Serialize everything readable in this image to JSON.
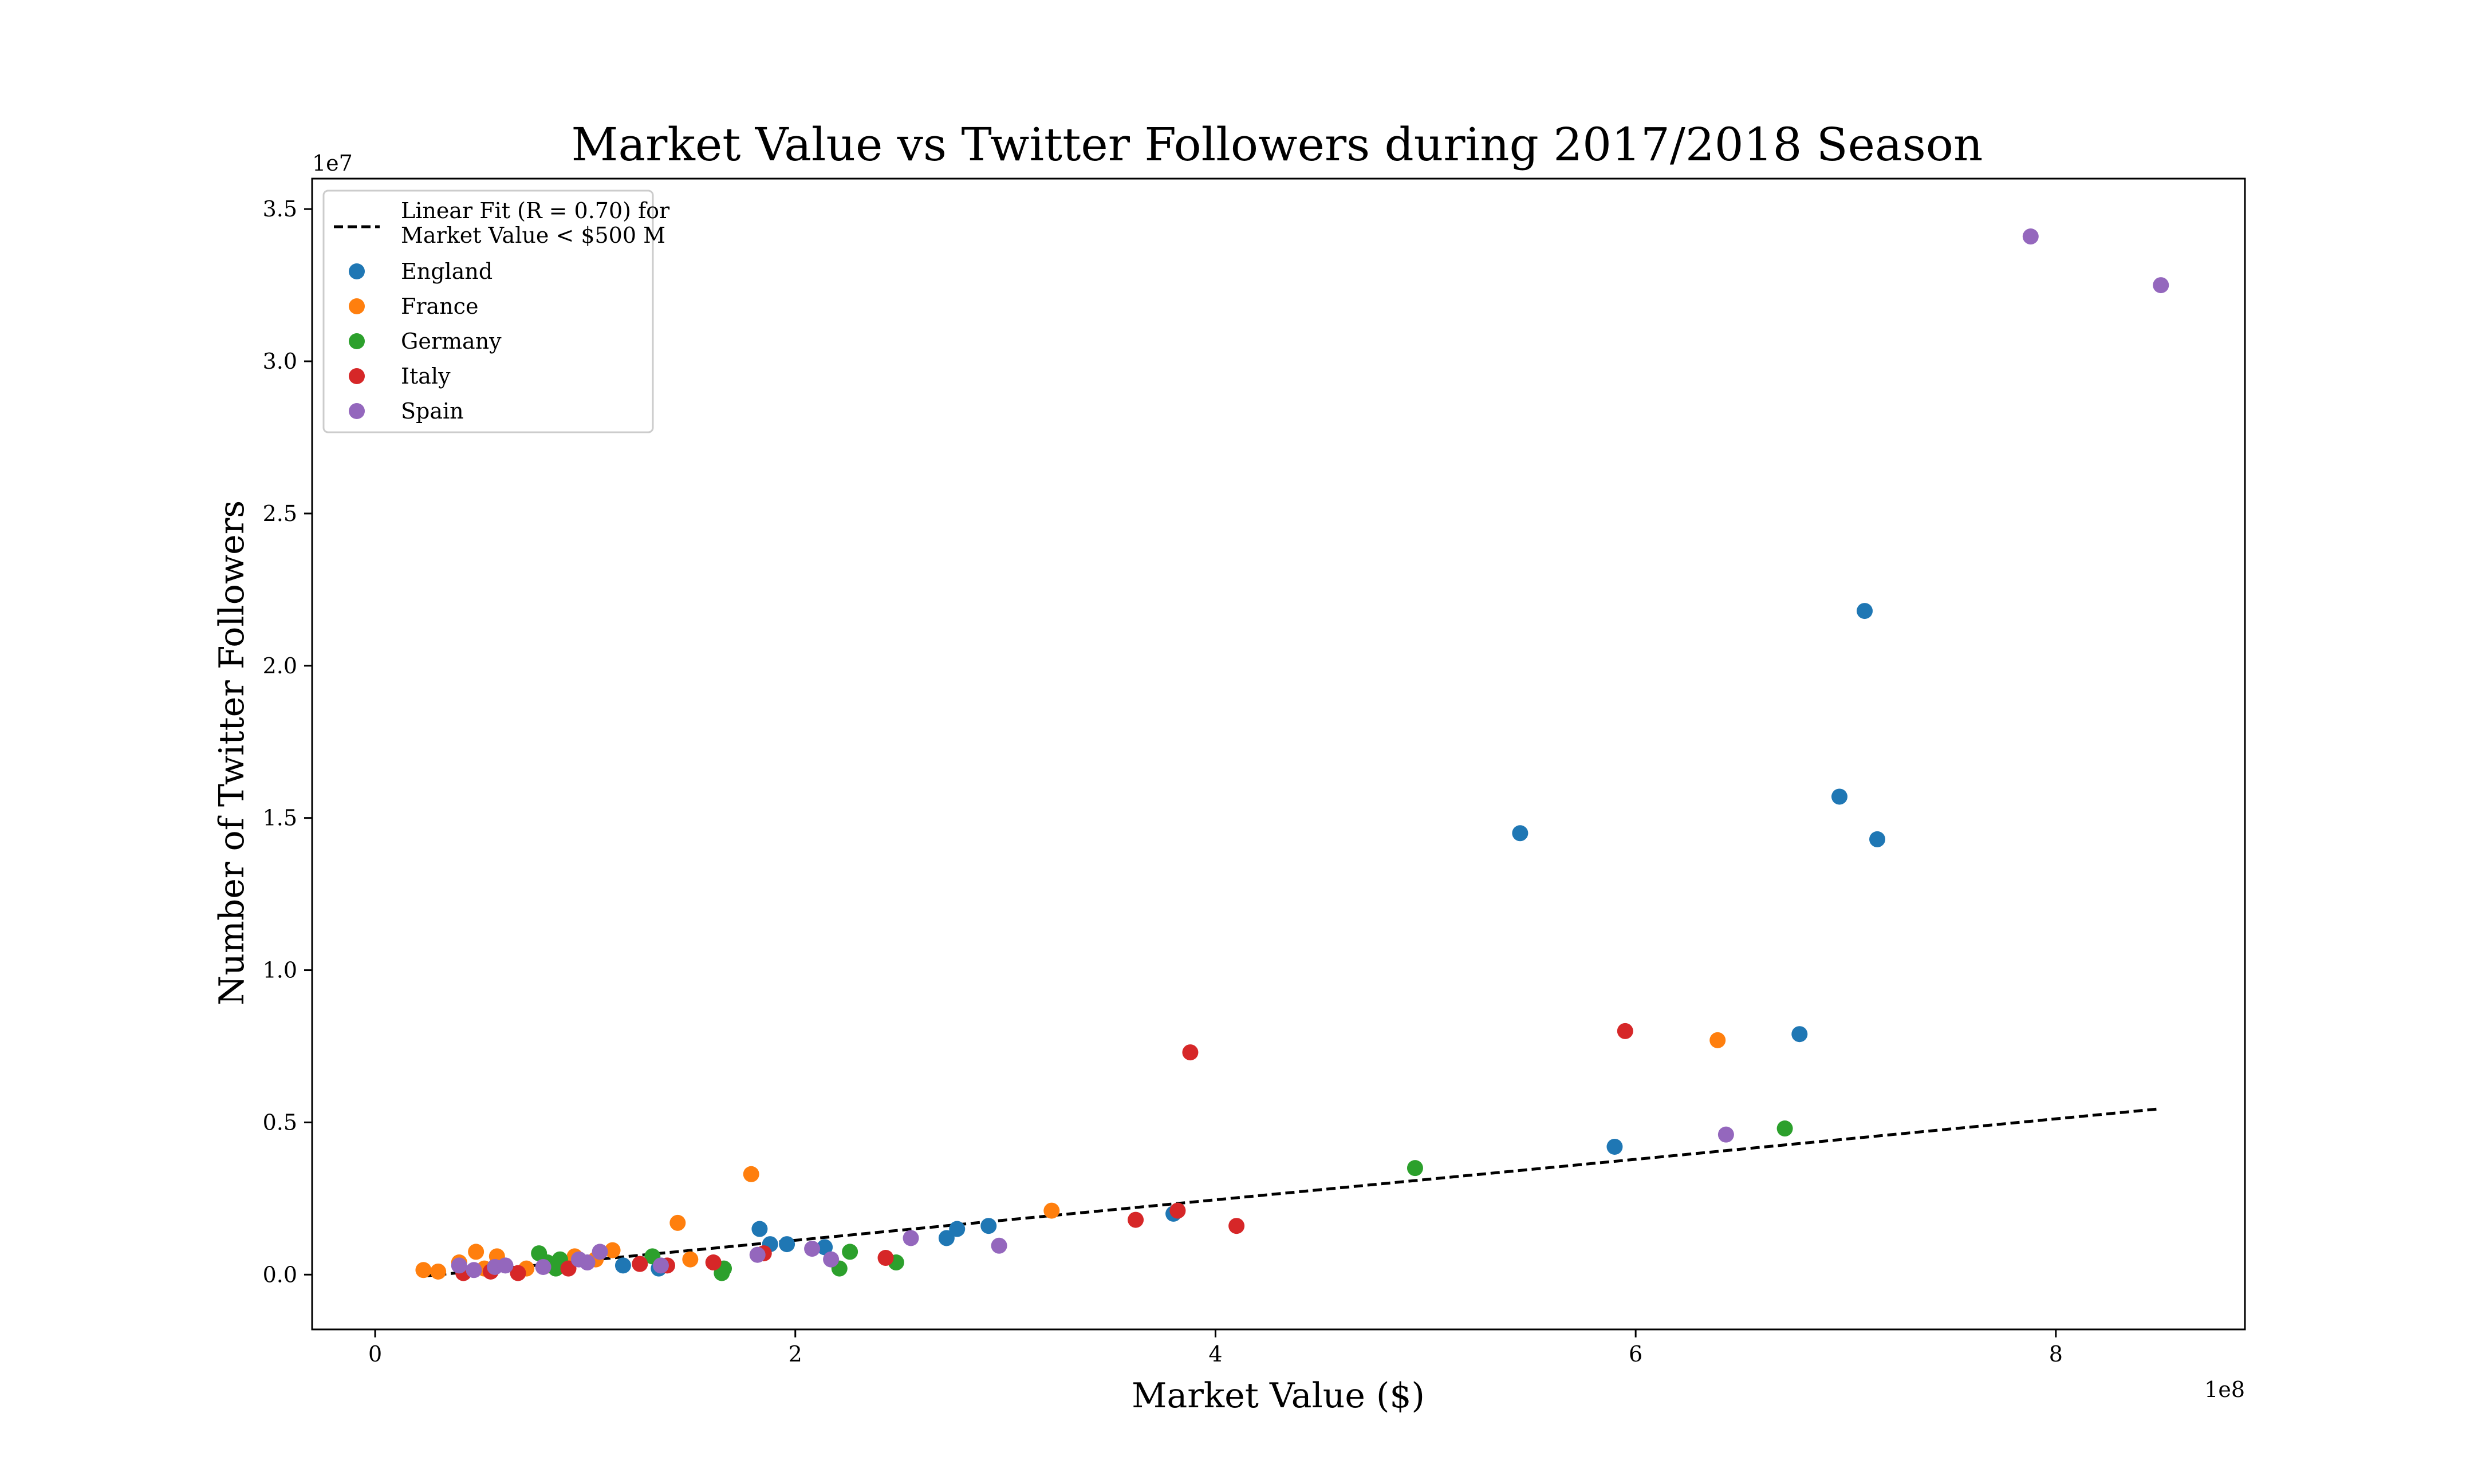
{
  "chart_data": {
    "type": "scatter",
    "title": "Market Value vs Twitter Followers during 2017/2018 Season",
    "xlabel": "Market Value ($)",
    "ylabel": "Number of Twitter Followers",
    "x_multiplier_label": "1e8",
    "y_multiplier_label": "1e7",
    "xlim": [
      -0.3,
      8.9
    ],
    "ylim": [
      -0.18,
      3.6
    ],
    "x_ticks": [
      0,
      2,
      4,
      6,
      8
    ],
    "x_tick_labels": [
      "0",
      "2",
      "4",
      "6",
      "8"
    ],
    "y_ticks": [
      0.0,
      0.5,
      1.0,
      1.5,
      2.0,
      2.5,
      3.0,
      3.5
    ],
    "y_tick_labels": [
      "0.0",
      "0.5",
      "1.0",
      "1.5",
      "2.0",
      "2.5",
      "3.0",
      "3.5"
    ],
    "grid": false,
    "legend_position": "top-left",
    "fit_line": {
      "label_line1": "Linear Fit (R = 0.70) for",
      "label_line2": "Market Value < $500 M",
      "x": [
        0.23,
        8.5
      ],
      "y": [
        -0.005,
        0.545
      ],
      "color": "#000000",
      "style": "dashed"
    },
    "series": [
      {
        "name": "England",
        "color": "#1f77b4",
        "points": [
          [
            1.18,
            0.03
          ],
          [
            1.35,
            0.02
          ],
          [
            1.83,
            0.15
          ],
          [
            1.88,
            0.1
          ],
          [
            1.96,
            0.1
          ],
          [
            2.14,
            0.09
          ],
          [
            2.72,
            0.12
          ],
          [
            2.77,
            0.15
          ],
          [
            2.92,
            0.16
          ],
          [
            3.8,
            0.2
          ],
          [
            5.45,
            1.45
          ],
          [
            5.9,
            0.42
          ],
          [
            6.78,
            0.79
          ],
          [
            6.97,
            1.57
          ],
          [
            7.09,
            2.18
          ],
          [
            7.15,
            1.43
          ]
        ]
      },
      {
        "name": "France",
        "color": "#ff7f0e",
        "points": [
          [
            0.23,
            0.015
          ],
          [
            0.3,
            0.01
          ],
          [
            0.4,
            0.04
          ],
          [
            0.48,
            0.075
          ],
          [
            0.58,
            0.06
          ],
          [
            0.52,
            0.02
          ],
          [
            0.72,
            0.02
          ],
          [
            0.82,
            0.03
          ],
          [
            0.95,
            0.06
          ],
          [
            1.05,
            0.05
          ],
          [
            1.13,
            0.08
          ],
          [
            1.44,
            0.17
          ],
          [
            1.5,
            0.05
          ],
          [
            1.79,
            0.33
          ],
          [
            3.22,
            0.21
          ],
          [
            6.39,
            0.77
          ]
        ]
      },
      {
        "name": "Germany",
        "color": "#2ca02c",
        "points": [
          [
            0.78,
            0.07
          ],
          [
            0.82,
            0.04
          ],
          [
            0.86,
            0.02
          ],
          [
            0.88,
            0.05
          ],
          [
            1.32,
            0.06
          ],
          [
            1.65,
            0.005
          ],
          [
            1.66,
            0.02
          ],
          [
            2.21,
            0.02
          ],
          [
            2.26,
            0.075
          ],
          [
            2.48,
            0.04
          ],
          [
            4.95,
            0.35
          ],
          [
            6.71,
            0.48
          ]
        ]
      },
      {
        "name": "Italy",
        "color": "#d62728",
        "points": [
          [
            0.42,
            0.005
          ],
          [
            0.55,
            0.01
          ],
          [
            0.68,
            0.005
          ],
          [
            0.92,
            0.02
          ],
          [
            1.26,
            0.035
          ],
          [
            1.39,
            0.03
          ],
          [
            1.61,
            0.04
          ],
          [
            1.85,
            0.07
          ],
          [
            2.43,
            0.055
          ],
          [
            3.62,
            0.18
          ],
          [
            3.82,
            0.21
          ],
          [
            3.88,
            0.73
          ],
          [
            4.1,
            0.16
          ],
          [
            5.95,
            0.8
          ]
        ]
      },
      {
        "name": "Spain",
        "color": "#9467bd",
        "points": [
          [
            0.4,
            0.03
          ],
          [
            0.47,
            0.015
          ],
          [
            0.57,
            0.025
          ],
          [
            0.62,
            0.03
          ],
          [
            0.8,
            0.025
          ],
          [
            0.97,
            0.05
          ],
          [
            1.01,
            0.04
          ],
          [
            1.07,
            0.075
          ],
          [
            1.36,
            0.03
          ],
          [
            1.82,
            0.065
          ],
          [
            2.08,
            0.085
          ],
          [
            2.17,
            0.05
          ],
          [
            2.55,
            0.12
          ],
          [
            2.97,
            0.095
          ],
          [
            6.43,
            0.46
          ],
          [
            7.88,
            3.41
          ],
          [
            8.5,
            3.25
          ]
        ]
      }
    ]
  }
}
